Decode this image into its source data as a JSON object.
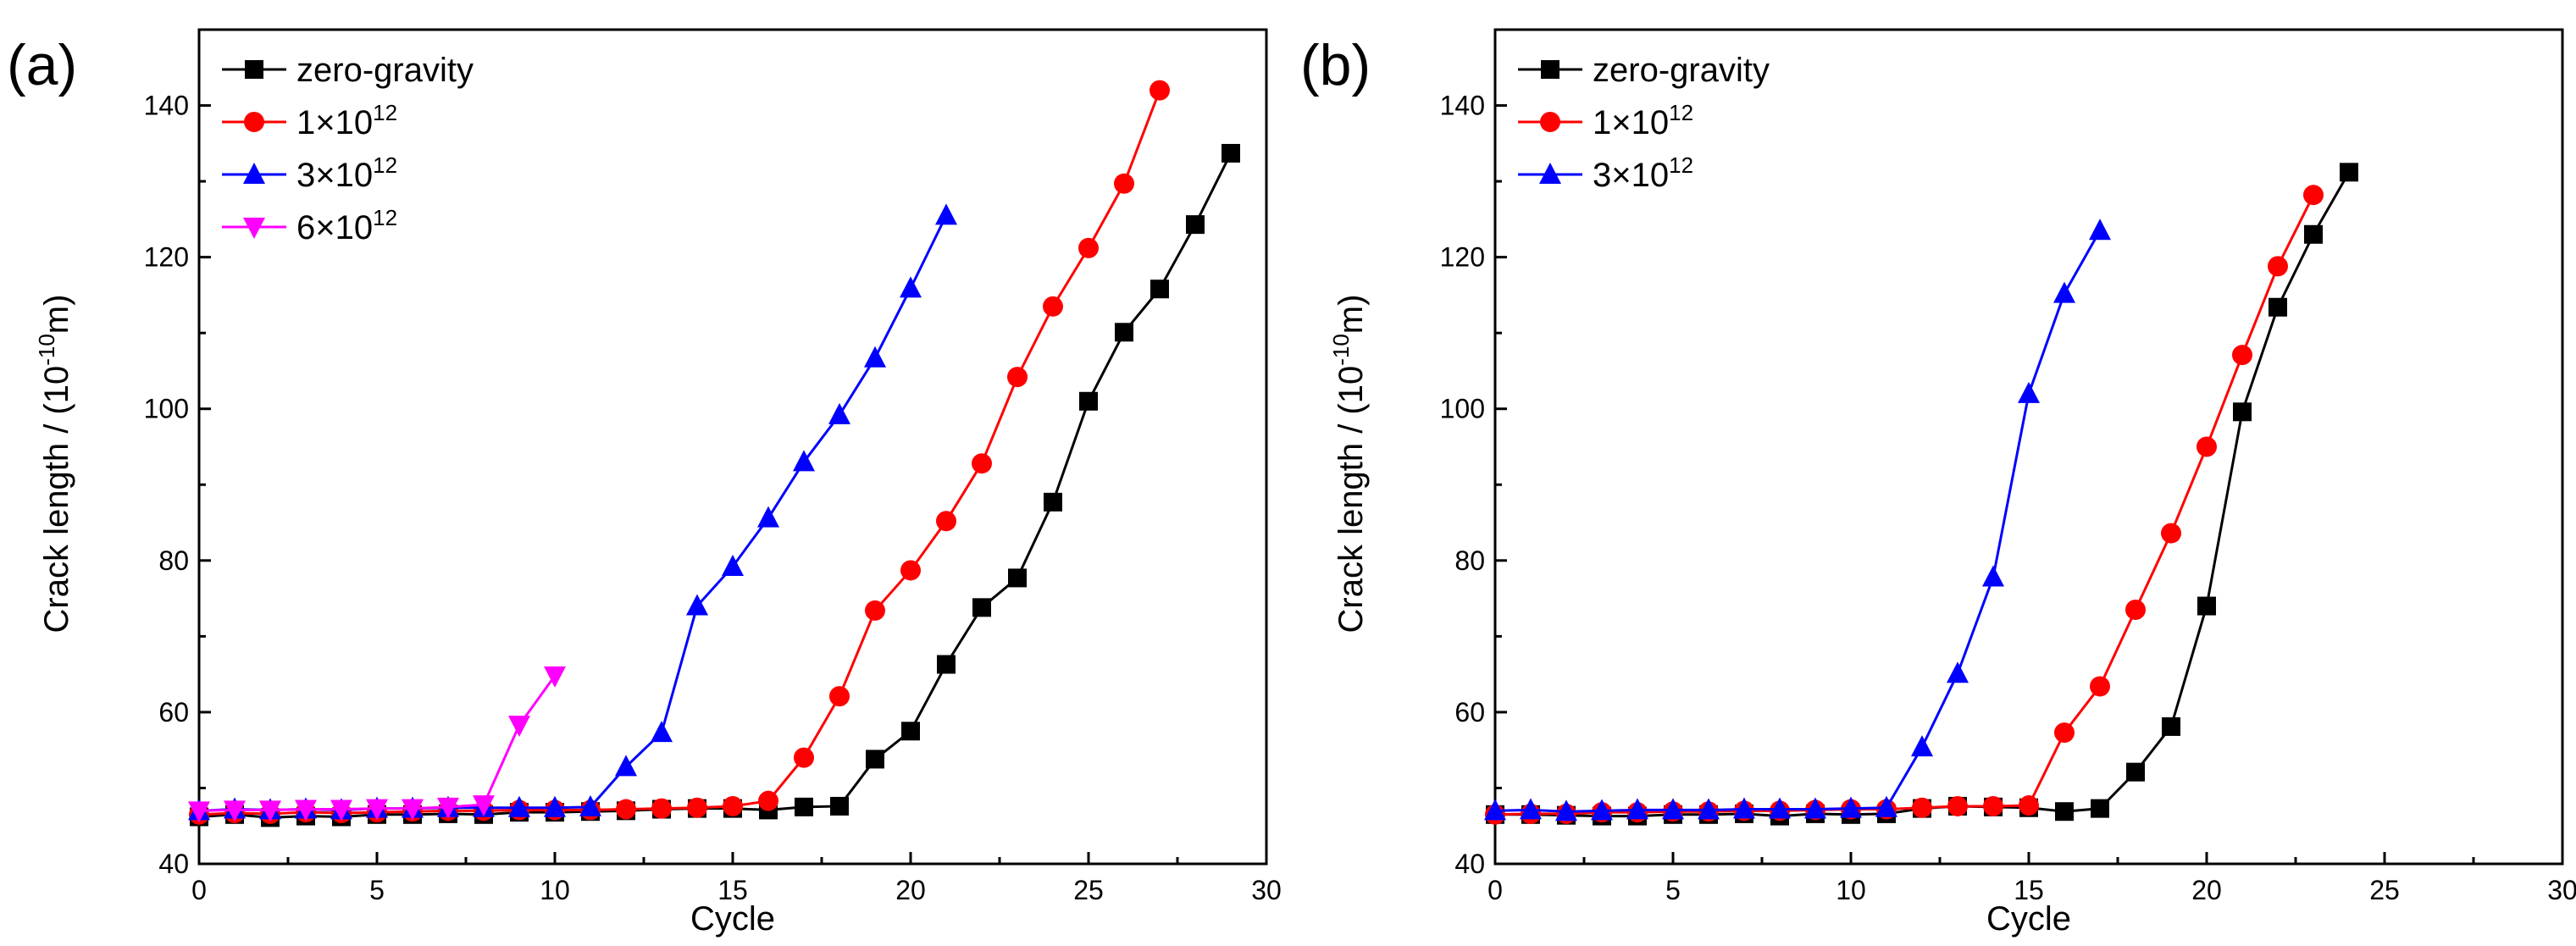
{
  "figure": {
    "chart_data": [
      {
        "type": "line",
        "panel_label": "(a)",
        "xlabel": "Cycle",
        "ylabel_main": "Crack length / (10",
        "ylabel_exp": "-10",
        "ylabel_tail": "m)",
        "xlim": [
          0,
          30
        ],
        "ylim": [
          40,
          150
        ],
        "xticks": [
          0,
          5,
          10,
          15,
          20,
          25,
          30
        ],
        "yticks": [
          40,
          60,
          80,
          100,
          120,
          140
        ],
        "xtick_labels": [
          "0",
          "5",
          "10",
          "15",
          "20",
          "25",
          "30"
        ],
        "ytick_labels": [
          "40",
          "60",
          "80",
          "100",
          "120",
          "140"
        ],
        "legend_position": "top-left",
        "series": [
          {
            "name": "zero-gravity",
            "base": "zero-gravity",
            "exp": "",
            "color": "#000000",
            "marker": "square",
            "x": [
              0,
              1,
              2,
              3,
              4,
              5,
              6,
              7,
              8,
              9,
              10,
              11,
              12,
              13,
              14,
              15,
              16,
              17,
              18,
              19,
              20,
              21,
              22,
              23,
              24,
              25,
              26,
              27,
              28,
              29
            ],
            "y": [
              46.2,
              46.5,
              46.1,
              46.3,
              46.2,
              46.5,
              46.5,
              46.6,
              46.5,
              46.8,
              46.8,
              46.9,
              47.0,
              47.2,
              47.3,
              47.3,
              47.1,
              47.5,
              47.6,
              53.8,
              57.5,
              66.3,
              73.8,
              77.7,
              87.7,
              101.0,
              110.1,
              115.8,
              124.3,
              133.7
            ]
          },
          {
            "name": "1×10^12",
            "base": "1×10",
            "exp": "12",
            "color": "#ff0000",
            "marker": "circle",
            "x": [
              0,
              1,
              2,
              3,
              4,
              5,
              6,
              7,
              8,
              9,
              10,
              11,
              12,
              13,
              14,
              15,
              16,
              17,
              18,
              19,
              20,
              21,
              22,
              23,
              24,
              25,
              26,
              27
            ],
            "y": [
              46.5,
              46.7,
              46.6,
              46.8,
              46.7,
              46.8,
              46.9,
              47.0,
              47.0,
              47.1,
              47.1,
              47.1,
              47.2,
              47.3,
              47.4,
              47.6,
              48.3,
              54.0,
              62.1,
              73.4,
              78.7,
              85.2,
              92.8,
              104.2,
              113.5,
              121.2,
              129.7,
              142.0
            ]
          },
          {
            "name": "3×10^12",
            "base": "3×10",
            "exp": "12",
            "color": "#0000ff",
            "marker": "triangle-up",
            "x": [
              0,
              1,
              2,
              3,
              4,
              5,
              6,
              7,
              8,
              9,
              10,
              11,
              12,
              13,
              14,
              15,
              16,
              17,
              18,
              19,
              20,
              21
            ],
            "y": [
              47.0,
              47.2,
              47.1,
              47.2,
              47.1,
              47.3,
              47.3,
              47.4,
              47.4,
              47.4,
              47.4,
              47.5,
              52.8,
              57.3,
              74.0,
              79.2,
              85.6,
              93.0,
              99.2,
              106.7,
              115.9,
              125.5
            ]
          },
          {
            "name": "6×10^12",
            "base": "6×10",
            "exp": "12",
            "color": "#ff00ff",
            "marker": "triangle-down",
            "x": [
              0,
              1,
              2,
              3,
              4,
              5,
              6,
              7,
              8,
              9,
              10
            ],
            "y": [
              47.0,
              47.1,
              47.1,
              47.2,
              47.2,
              47.3,
              47.3,
              47.5,
              47.8,
              58.3,
              64.8
            ]
          }
        ]
      },
      {
        "type": "line",
        "panel_label": "(b)",
        "xlabel": "Cycle",
        "ylabel_main": "Crack length / (10",
        "ylabel_exp": "-10",
        "ylabel_tail": "m)",
        "xlim": [
          0,
          30
        ],
        "ylim": [
          40,
          150
        ],
        "xticks": [
          0,
          5,
          10,
          15,
          20,
          25,
          30
        ],
        "yticks": [
          40,
          60,
          80,
          100,
          120,
          140
        ],
        "xtick_labels": [
          "0",
          "5",
          "10",
          "15",
          "20",
          "25",
          "30"
        ],
        "ytick_labels": [
          "40",
          "60",
          "80",
          "100",
          "120",
          "140"
        ],
        "legend_position": "top-left",
        "series": [
          {
            "name": "zero-gravity",
            "base": "zero-gravity",
            "exp": "",
            "color": "#000000",
            "marker": "square",
            "x": [
              0,
              1,
              2,
              3,
              4,
              5,
              6,
              7,
              8,
              9,
              10,
              11,
              12,
              13,
              14,
              15,
              16,
              17,
              18,
              19,
              20,
              21,
              22,
              23,
              24
            ],
            "y": [
              46.5,
              46.5,
              46.4,
              46.3,
              46.3,
              46.5,
              46.5,
              46.6,
              46.3,
              46.6,
              46.5,
              46.6,
              47.3,
              47.6,
              47.5,
              47.4,
              46.9,
              47.3,
              52.1,
              58.1,
              74.0,
              99.6,
              113.4,
              123.0,
              131.2
            ]
          },
          {
            "name": "1×10^12",
            "base": "1×10",
            "exp": "12",
            "color": "#ff0000",
            "marker": "circle",
            "x": [
              0,
              1,
              2,
              3,
              4,
              5,
              6,
              7,
              8,
              9,
              10,
              11,
              12,
              13,
              14,
              15,
              16,
              17,
              18,
              19,
              20,
              21,
              22,
              23
            ],
            "y": [
              46.5,
              46.6,
              46.6,
              46.8,
              46.8,
              46.9,
              46.9,
              47.0,
              47.0,
              47.1,
              47.2,
              47.2,
              47.4,
              47.6,
              47.6,
              47.7,
              57.3,
              63.4,
              73.5,
              83.6,
              95.0,
              107.1,
              118.8,
              128.2
            ]
          },
          {
            "name": "3×10^12",
            "base": "3×10",
            "exp": "12",
            "color": "#0000ff",
            "marker": "triangle-up",
            "x": [
              0,
              1,
              2,
              3,
              4,
              5,
              6,
              7,
              8,
              9,
              10,
              11,
              12,
              13,
              14,
              15,
              16,
              17
            ],
            "y": [
              47.0,
              47.1,
              46.9,
              47.0,
              47.1,
              47.1,
              47.1,
              47.2,
              47.2,
              47.2,
              47.3,
              47.4,
              55.4,
              65.1,
              77.8,
              102.0,
              115.2,
              123.5
            ]
          }
        ]
      }
    ]
  }
}
